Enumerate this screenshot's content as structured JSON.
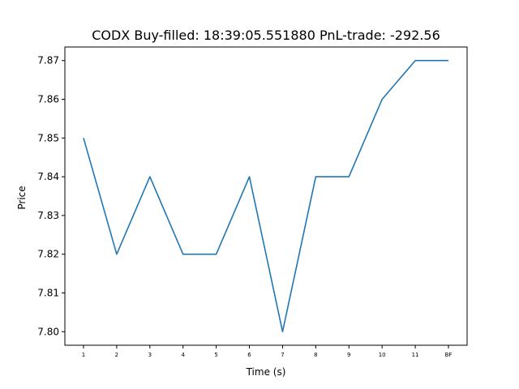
{
  "chart_data": {
    "type": "line",
    "title": "CODX  Buy-filled:  18:39:05.551880  PnL-trade:  -292.56",
    "xlabel": "Time (s)",
    "ylabel": "Price",
    "categories": [
      "1",
      "2",
      "3",
      "4",
      "5",
      "6",
      "7",
      "8",
      "9",
      "10",
      "11",
      "BF"
    ],
    "series": [
      {
        "values": [
          7.85,
          7.82,
          7.84,
          7.82,
          7.82,
          7.84,
          7.8,
          7.84,
          7.84,
          7.86,
          7.87,
          7.87
        ],
        "color": "#1f77b4"
      }
    ],
    "ylim": [
      7.7965,
      7.8735
    ],
    "yticks": [
      "7.80",
      "7.81",
      "7.82",
      "7.83",
      "7.84",
      "7.85",
      "7.86",
      "7.87"
    ],
    "grid": false,
    "legend": "none"
  }
}
